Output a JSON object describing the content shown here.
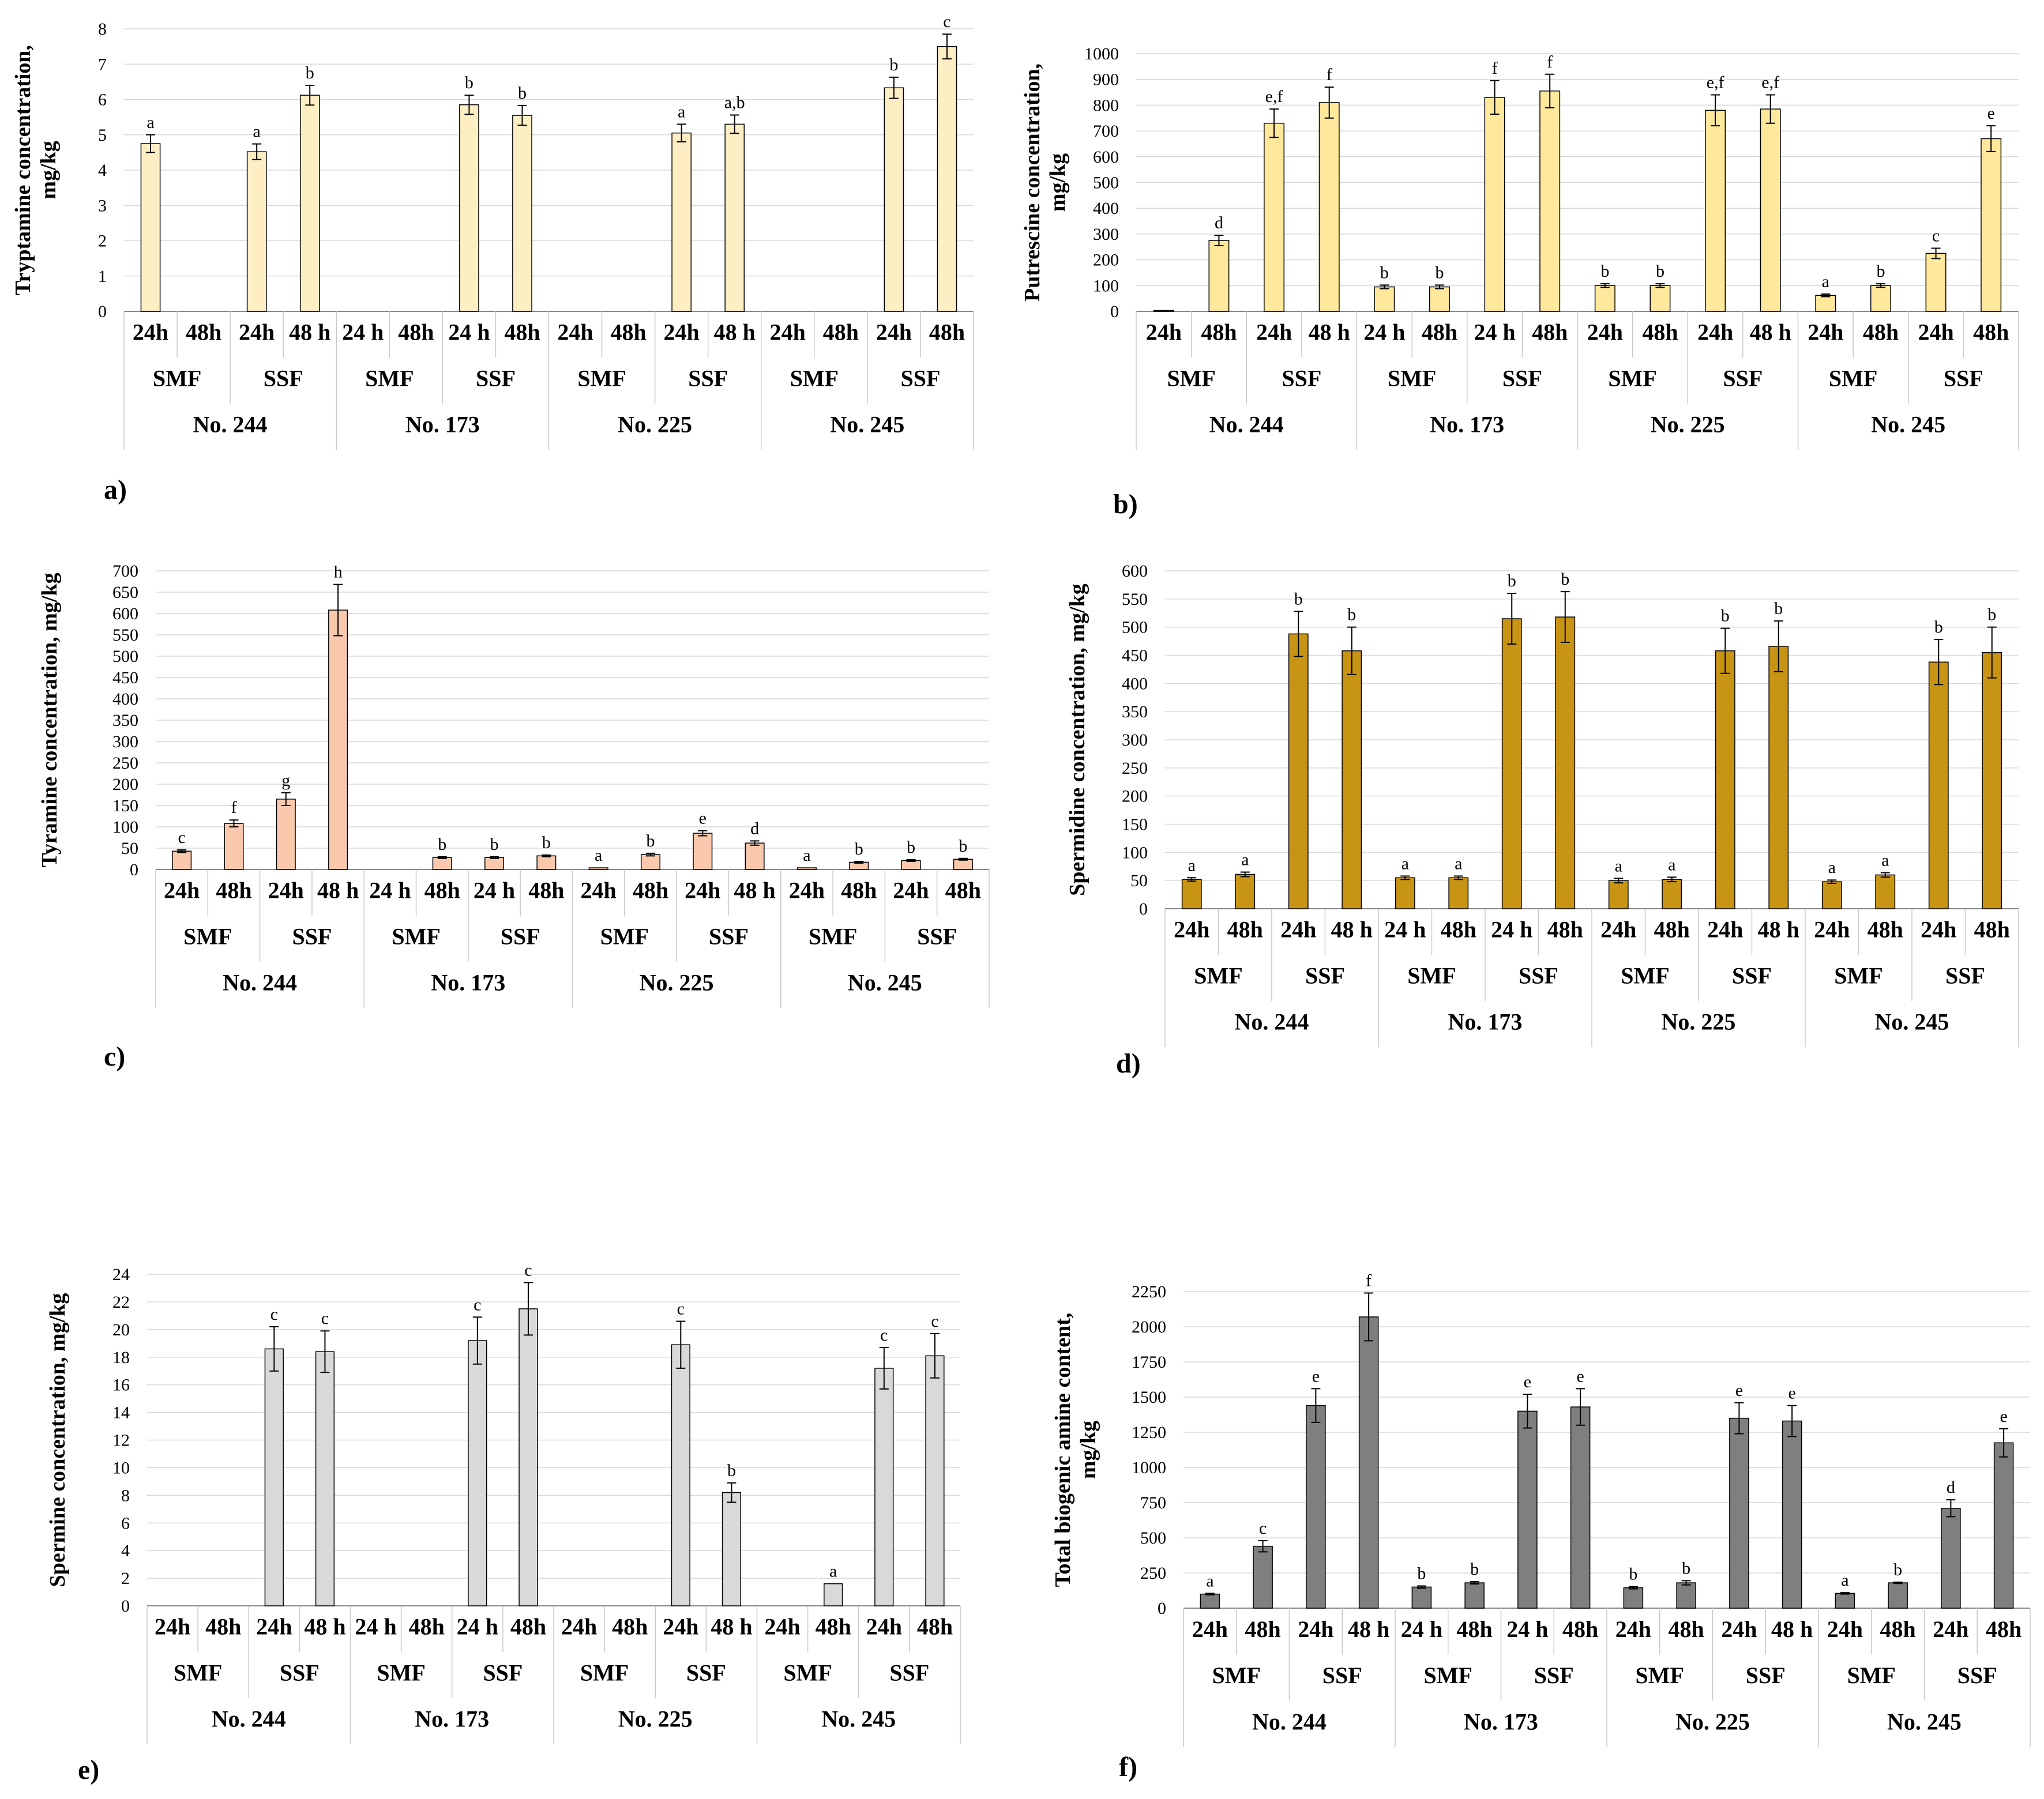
{
  "figure": {
    "groups": [
      "No. 244",
      "No. 173",
      "No. 225",
      "No. 245"
    ],
    "methods": [
      "SMF",
      "SSF"
    ]
  },
  "chart_data": [
    {
      "id": "a",
      "panel_label": "a)",
      "type": "bar",
      "color": "#fdeec4",
      "ylabel": [
        "Tryptamine  concentration,",
        "mg/kg"
      ],
      "ylim": [
        0,
        8
      ],
      "ystep": 1,
      "time_labels": [
        "24h",
        "48h",
        "24h",
        "48 h",
        "24 h",
        "48h",
        "24 h",
        "48h",
        "24h",
        "48h",
        "24h",
        "48 h",
        "24h",
        "48h",
        "24h",
        "48h"
      ],
      "values": [
        4.75,
        null,
        4.52,
        6.12,
        null,
        null,
        5.85,
        5.55,
        null,
        null,
        5.05,
        5.3,
        null,
        null,
        6.33,
        7.5
      ],
      "errors": [
        0.25,
        null,
        0.22,
        0.28,
        null,
        null,
        0.27,
        0.28,
        null,
        null,
        0.25,
        0.26,
        null,
        null,
        0.3,
        0.35
      ],
      "sig": [
        "a",
        "",
        "a",
        "b",
        "",
        "",
        "b",
        "b",
        "",
        "",
        "a",
        "a,b",
        "",
        "",
        "b",
        "c"
      ]
    },
    {
      "id": "b",
      "panel_label": "b)",
      "type": "bar",
      "color": "#fde89b",
      "ylabel": [
        "Putrescine  concentration,",
        "mg/kg"
      ],
      "ylim": [
        0,
        1000
      ],
      "ystep": 100,
      "time_labels": [
        "24h",
        "48h",
        "24h",
        "48 h",
        "24 h",
        "48h",
        "24 h",
        "48h",
        "24h",
        "48h",
        "24h",
        "48 h",
        "24h",
        "48h",
        "24h",
        "48h"
      ],
      "values": [
        2,
        275,
        730,
        810,
        95,
        95,
        830,
        855,
        100,
        100,
        780,
        785,
        62,
        100,
        225,
        670
      ],
      "errors": [
        0,
        20,
        55,
        60,
        7,
        7,
        65,
        65,
        7,
        7,
        60,
        55,
        5,
        7,
        20,
        50
      ],
      "sig": [
        "",
        "d",
        "e,f",
        "f",
        "b",
        "b",
        "f",
        "f",
        "b",
        "b",
        "e,f",
        "e,f",
        "a",
        "b",
        "c",
        "e"
      ]
    },
    {
      "id": "c",
      "panel_label": "c)",
      "type": "bar",
      "color": "#fac9ad",
      "ylabel": [
        "Tyramine  concentration,  mg/kg"
      ],
      "ylim": [
        0,
        700
      ],
      "ystep": 50,
      "time_labels": [
        "24h",
        "48h",
        "24h",
        "48 h",
        "24 h",
        "48h",
        "24 h",
        "48h",
        "24h",
        "48h",
        "24h",
        "48 h",
        "24h",
        "48h",
        "24h",
        "48h"
      ],
      "values": [
        43,
        108,
        165,
        608,
        null,
        28,
        28,
        32,
        4,
        35,
        85,
        62,
        4,
        17,
        21,
        24
      ],
      "errors": [
        3,
        8,
        15,
        60,
        null,
        2,
        2,
        2,
        0,
        3,
        6,
        5,
        0,
        2,
        2,
        2
      ],
      "sig": [
        "c",
        "f",
        "g",
        "h",
        "",
        "b",
        "b",
        "b",
        "a",
        "b",
        "e",
        "d",
        "a",
        "b",
        "b",
        "b"
      ]
    },
    {
      "id": "d",
      "panel_label": "d)",
      "type": "bar",
      "color": "#c89414",
      "ylabel": [
        "Spermidine  concentration,  mg/kg"
      ],
      "ylim": [
        0,
        600
      ],
      "ystep": 50,
      "time_labels": [
        "24h",
        "48h",
        "24h",
        "48 h",
        "24 h",
        "48h",
        "24 h",
        "48h",
        "24h",
        "48h",
        "24h",
        "48 h",
        "24h",
        "48h",
        "24h",
        "48h"
      ],
      "values": [
        52,
        61,
        488,
        458,
        55,
        55,
        515,
        518,
        50,
        52,
        458,
        466,
        48,
        60,
        438,
        455
      ],
      "errors": [
        3,
        4,
        40,
        42,
        3,
        3,
        45,
        45,
        4,
        4,
        40,
        45,
        3,
        4,
        40,
        45
      ],
      "sig": [
        "a",
        "a",
        "b",
        "b",
        "a",
        "a",
        "b",
        "b",
        "a",
        "a",
        "b",
        "b",
        "a",
        "a",
        "b",
        "b"
      ]
    },
    {
      "id": "e",
      "panel_label": "e)",
      "type": "bar",
      "color": "#d9d9d9",
      "ylabel": [
        "Spermine  concentration,  mg/kg"
      ],
      "ylim": [
        0,
        24
      ],
      "ystep": 2,
      "time_labels": [
        "24h",
        "48h",
        "24h",
        "48 h",
        "24 h",
        "48h",
        "24 h",
        "48h",
        "24h",
        "48h",
        "24h",
        "48 h",
        "24h",
        "48h",
        "24h",
        "48h"
      ],
      "values": [
        null,
        null,
        18.6,
        18.4,
        null,
        null,
        19.2,
        21.5,
        null,
        null,
        18.9,
        8.2,
        null,
        1.6,
        17.2,
        18.1
      ],
      "errors": [
        null,
        null,
        1.6,
        1.5,
        null,
        null,
        1.7,
        1.9,
        null,
        null,
        1.7,
        0.7,
        null,
        0,
        1.5,
        1.6
      ],
      "sig": [
        "",
        "",
        "c",
        "c",
        "",
        "",
        "c",
        "c",
        "",
        "",
        "c",
        "b",
        "",
        "a",
        "c",
        "c"
      ]
    },
    {
      "id": "f",
      "panel_label": "f)",
      "type": "bar",
      "color": "#7f7f7f",
      "ylabel": [
        "Total biogenic  amine  content,",
        "mg/kg"
      ],
      "ylim": [
        0,
        2250
      ],
      "ystep": 250,
      "time_labels": [
        "24h",
        "48h",
        "24h",
        "48 h",
        "24 h",
        "48h",
        "24 h",
        "48h",
        "24h",
        "48h",
        "24h",
        "48 h",
        "24h",
        "48h",
        "24h",
        "48h"
      ],
      "values": [
        100,
        440,
        1440,
        2070,
        150,
        180,
        1400,
        1430,
        145,
        180,
        1350,
        1330,
        105,
        180,
        710,
        1175
      ],
      "errors": [
        5,
        40,
        120,
        170,
        8,
        8,
        120,
        130,
        8,
        15,
        110,
        110,
        5,
        5,
        60,
        100
      ],
      "sig": [
        "a",
        "c",
        "e",
        "f",
        "b",
        "b",
        "e",
        "e",
        "b",
        "b",
        "e",
        "e",
        "a",
        "b",
        "d",
        "e"
      ]
    }
  ]
}
